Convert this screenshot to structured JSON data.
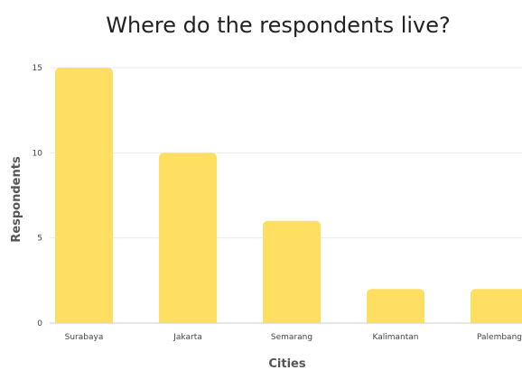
{
  "chart_data": {
    "type": "bar",
    "title": "Where do the respondents live?",
    "xlabel": "Cities",
    "ylabel": "Respondents",
    "categories": [
      "Surabaya",
      "Jakarta",
      "Semarang",
      "Kalimantan",
      "Palembang"
    ],
    "values": [
      15,
      10,
      6,
      2,
      2
    ],
    "ylim": [
      0,
      15
    ],
    "yticks": [
      0,
      5,
      10,
      15
    ],
    "grid": true,
    "legend": "none",
    "bar_color": "#FFDF61",
    "grid_color": "#EBEBEB",
    "axis_color": "#CCCCCC"
  }
}
